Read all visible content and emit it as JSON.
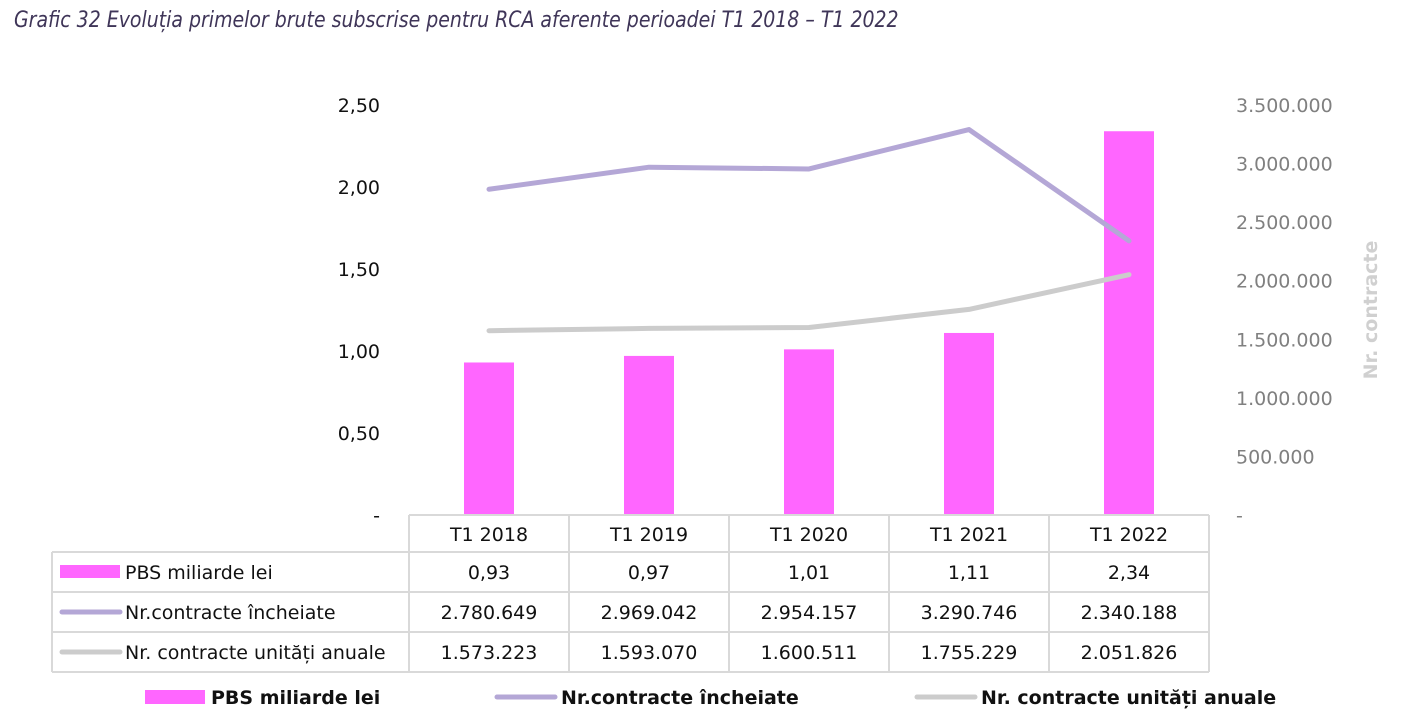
{
  "title": "Grafic 32 Evoluția primelor brute subscrise pentru RCA aferente perioadei T1 2018 – T1 2022",
  "colors": {
    "bar": "#ff66ff",
    "line1": "#b4a7d6",
    "line2": "#cccccc",
    "grid": "#d9d9d9"
  },
  "chart_data": {
    "type": "bar+line",
    "title": "Grafic 32 Evoluția primelor brute subscrise pentru RCA aferente perioadei T1 2018 – T1 2022",
    "categories": [
      "T1 2018",
      "T1 2019",
      "T1 2020",
      "T1 2021",
      "T1 2022"
    ],
    "left_axis": {
      "label": "",
      "ylim": [
        0,
        2.5
      ],
      "ticks": [
        "-",
        "0,50",
        "1,00",
        "1,50",
        "2,00",
        "2,50"
      ]
    },
    "right_axis": {
      "label": "Nr. contracte",
      "ylim": [
        0,
        3500000
      ],
      "ticks": [
        "-",
        "500.000",
        "1.000.000",
        "1.500.000",
        "2.000.000",
        "2.500.000",
        "3.000.000",
        "3.500.000"
      ]
    },
    "series": [
      {
        "name": "PBS miliarde lei",
        "type": "bar",
        "axis": "left",
        "values": [
          0.93,
          0.97,
          1.01,
          1.11,
          2.34
        ],
        "labels": [
          "0,93",
          "0,97",
          "1,01",
          "1,11",
          "2,34"
        ]
      },
      {
        "name": "Nr.contracte încheiate",
        "type": "line",
        "axis": "right",
        "values": [
          2780649,
          2969042,
          2954157,
          3290746,
          2340188
        ],
        "labels": [
          "2.780.649",
          "2.969.042",
          "2.954.157",
          "3.290.746",
          "2.340.188"
        ]
      },
      {
        "name": "Nr. contracte unități anuale",
        "type": "line",
        "axis": "right",
        "values": [
          1573223,
          1593070,
          1600511,
          1755229,
          2051826
        ],
        "labels": [
          "1.573.223",
          "1.593.070",
          "1.600.511",
          "1.755.229",
          "2.051.826"
        ]
      }
    ],
    "legend": "bottom",
    "data_table": true
  }
}
